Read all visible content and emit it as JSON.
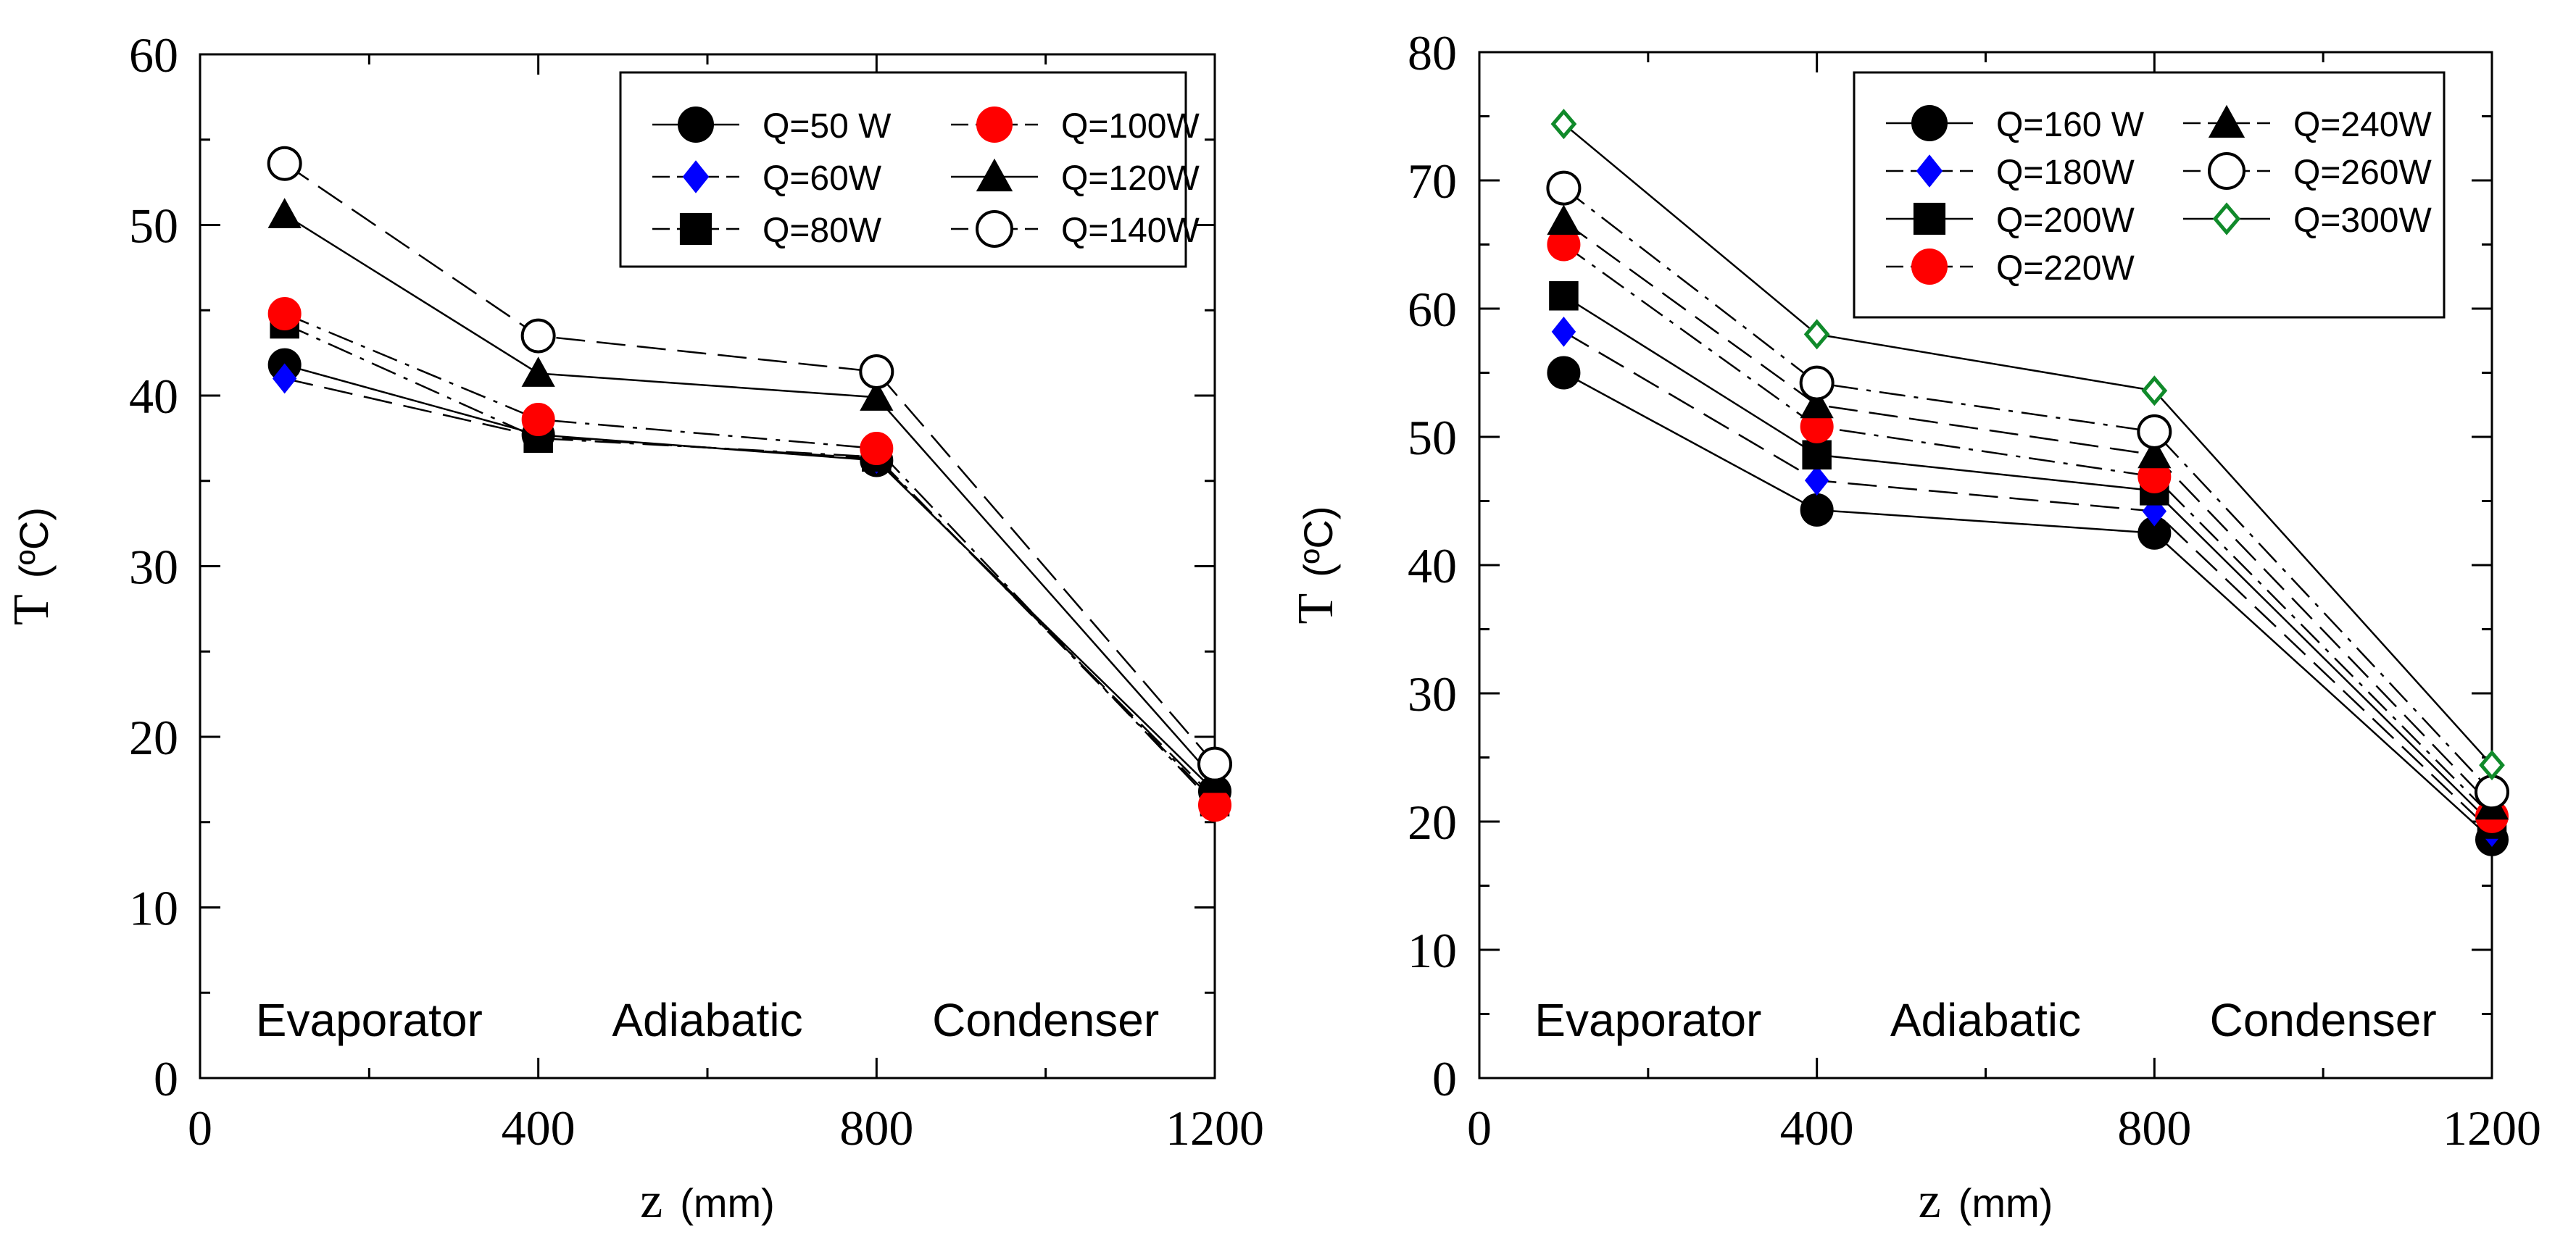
{
  "chart_data": [
    {
      "type": "line",
      "xlabel_symbol": "z",
      "xlabel_unit": "(mm)",
      "ylabel_symbol": "T",
      "ylabel_unit": "(ºC)",
      "xlim": [
        0,
        1200
      ],
      "ylim": [
        0,
        60
      ],
      "xticks": [
        0,
        400,
        800,
        1200
      ],
      "xtick_labels": [
        "0",
        "400",
        "800",
        "1200"
      ],
      "yticks": [
        0,
        10,
        20,
        30,
        40,
        50,
        60
      ],
      "ytick_labels": [
        "0",
        "10",
        "20",
        "30",
        "40",
        "50",
        "60"
      ],
      "grid": false,
      "legend_position": "top-right",
      "x": [
        100,
        400,
        800,
        1200
      ],
      "regions": [
        {
          "label": "Evaporator",
          "x": 200
        },
        {
          "label": "Adiabatic",
          "x": 600
        },
        {
          "label": "Condenser",
          "x": 1000
        }
      ],
      "series": [
        {
          "name": "Q=50 W",
          "values": [
            41.8,
            37.7,
            36.2,
            16.8
          ],
          "marker": "circle-filled",
          "color": "#000000",
          "line": "solid"
        },
        {
          "name": "Q=60W",
          "values": [
            41.0,
            37.6,
            36.3,
            16.4
          ],
          "marker": "diamond-filled",
          "color": "#0000ff",
          "line": "dashed"
        },
        {
          "name": "Q=80W",
          "values": [
            44.2,
            37.5,
            36.4,
            16.2
          ],
          "marker": "square-filled",
          "color": "#000000",
          "line": "dashdot"
        },
        {
          "name": "Q=100W",
          "values": [
            44.8,
            38.6,
            36.9,
            16.0
          ],
          "marker": "circle-filled",
          "color": "#ff0000",
          "line": "dashdot"
        },
        {
          "name": "Q=120W",
          "values": [
            50.6,
            41.3,
            39.9,
            17.5
          ],
          "marker": "triangle-filled",
          "color": "#000000",
          "line": "solid"
        },
        {
          "name": "Q=140W",
          "values": [
            53.6,
            43.5,
            41.4,
            18.4
          ],
          "marker": "circle-open",
          "color": "#000000",
          "line": "dashed"
        }
      ]
    },
    {
      "type": "line",
      "xlabel_symbol": "z",
      "xlabel_unit": "(mm)",
      "ylabel_symbol": "T",
      "ylabel_unit": "(ºC)",
      "xlim": [
        0,
        1200
      ],
      "ylim": [
        0,
        80
      ],
      "xticks": [
        0,
        400,
        800,
        1200
      ],
      "xtick_labels": [
        "0",
        "400",
        "800",
        "1200"
      ],
      "yticks": [
        0,
        10,
        20,
        30,
        40,
        50,
        60,
        70,
        80
      ],
      "ytick_labels": [
        "0",
        "10",
        "20",
        "30",
        "40",
        "50",
        "60",
        "70",
        "80"
      ],
      "grid": false,
      "legend_position": "top-right",
      "x": [
        100,
        400,
        800,
        1200
      ],
      "regions": [
        {
          "label": "Evaporator",
          "x": 200
        },
        {
          "label": "Adiabatic",
          "x": 600
        },
        {
          "label": "Condenser",
          "x": 1000
        }
      ],
      "series": [
        {
          "name": "Q=160 W",
          "values": [
            55.0,
            44.3,
            42.5,
            18.6
          ],
          "marker": "circle-filled",
          "color": "#000000",
          "line": "solid"
        },
        {
          "name": "Q=180W",
          "values": [
            58.2,
            46.6,
            44.2,
            19.2
          ],
          "marker": "diamond-filled",
          "color": "#0000ff",
          "line": "dashed"
        },
        {
          "name": "Q=200W",
          "values": [
            61.0,
            48.6,
            45.8,
            19.8
          ],
          "marker": "square-filled",
          "color": "#000000",
          "line": "solid"
        },
        {
          "name": "Q=220W",
          "values": [
            65.0,
            50.8,
            46.9,
            20.4
          ],
          "marker": "circle-filled",
          "color": "#ff0000",
          "line": "dashdot"
        },
        {
          "name": "Q=240W",
          "values": [
            66.8,
            52.5,
            48.6,
            21.2
          ],
          "marker": "triangle-filled",
          "color": "#000000",
          "line": "dashed"
        },
        {
          "name": "Q=260W",
          "values": [
            69.4,
            54.2,
            50.4,
            22.3
          ],
          "marker": "circle-open",
          "color": "#000000",
          "line": "dashdot"
        },
        {
          "name": "Q=300W",
          "values": [
            74.4,
            58.0,
            53.6,
            24.4
          ],
          "marker": "diamond-open",
          "color": "#108a2a",
          "line": "solid"
        }
      ]
    }
  ]
}
